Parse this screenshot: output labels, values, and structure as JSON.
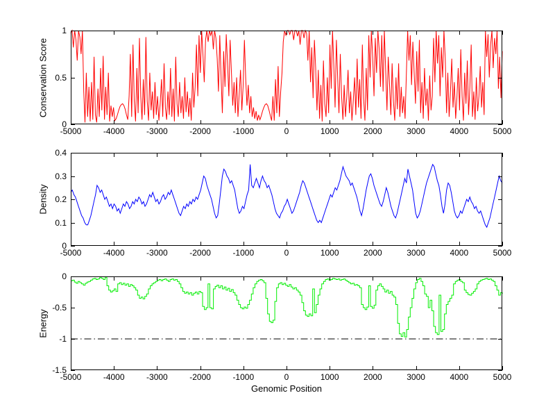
{
  "figure": {
    "background": "#ffffff"
  },
  "chart_data": [
    {
      "type": "line",
      "title": "",
      "ylabel": "Conservation Score",
      "xlabel": "",
      "xlim": [
        -5000,
        5000
      ],
      "ylim": [
        0,
        1
      ],
      "xticks": [
        -5000,
        -4000,
        -3000,
        -2000,
        -1000,
        0,
        1000,
        2000,
        3000,
        4000,
        5000
      ],
      "xtick_labels": [
        "-5000",
        "-4000",
        "-3000",
        "-2000",
        "-1000",
        "0",
        "1000",
        "2000",
        "3000",
        "4000",
        "5000"
      ],
      "yticks": [
        0,
        0.5,
        1
      ],
      "ytick_labels": [
        "0",
        "0.5",
        "1"
      ],
      "grid": false,
      "legend": null,
      "step": false,
      "refline": null,
      "series": [
        {
          "name": "conservation score",
          "color": "#ff0000",
          "x_start": -5000,
          "x_end": 5000,
          "values": [
            0.97,
            1,
            0.82,
            1,
            0.9,
            0.68,
            1,
            0.93,
            0.75,
            1,
            0.35,
            0.02,
            0.55,
            0.08,
            0.4,
            0.03,
            0.45,
            0.05,
            0.72,
            0.1,
            0.02,
            0.38,
            0.08,
            0.6,
            0.15,
            0.73,
            0.05,
            0.4,
            0.1,
            0.55,
            0.03,
            0.2,
            0.08,
            0.18,
            0.04,
            0.06,
            0.1,
            0.15,
            0.19,
            0.21,
            0.22,
            0.2,
            0.16,
            0.1,
            0.05,
            0.3,
            0.75,
            0.08,
            0.85,
            0.25,
            0.03,
            0.6,
            0.12,
            0.92,
            0.3,
            0.05,
            0.48,
            0.1,
            0.93,
            0.25,
            0.04,
            0.55,
            0.15,
            0.35,
            0.06,
            0.45,
            0.1,
            0.3,
            0.04,
            0.22,
            0.48,
            0.08,
            0.65,
            0.18,
            0.05,
            0.35,
            0.1,
            0.6,
            0.08,
            0.38,
            0.03,
            0.72,
            0.22,
            0.08,
            0.45,
            0.12,
            0.3,
            0.06,
            0.5,
            0.13,
            0.35,
            0.08,
            0.28,
            0.04,
            0.55,
            0.18,
            0.4,
            0.85,
            0.3,
            0.95,
            0.55,
            1,
            0.75,
            0.45,
            0.9,
            1,
            0.88,
            1,
            0.95,
            1,
            0.8,
            1,
            0.92,
            0.7,
            0.35,
            0.95,
            0.5,
            0.12,
            0.78,
            0.4,
            0.96,
            0.65,
            0.3,
            0.9,
            0.55,
            0.2,
            0.45,
            0.12,
            0.5,
            0.08,
            0.32,
            0.58,
            0.15,
            0.4,
            0.9,
            0.48,
            0.2,
            0.42,
            0.12,
            0.3,
            0.08,
            0.18,
            0.06,
            0.14,
            0.04,
            0.1,
            0.05,
            0.09,
            0.14,
            0.18,
            0.21,
            0.22,
            0.2,
            0.15,
            0.09,
            0.04,
            0.3,
            0.04,
            0.48,
            0.12,
            0.62,
            0.08,
            0.35,
            0.55,
            0.88,
            1,
            0.95,
            1,
            1,
            0.96,
            1,
            1,
            0.9,
            1,
            1,
            0.94,
            1,
            0.85,
            1,
            1,
            0.92,
            1,
            0.97,
            0.68,
            1,
            0.45,
            0.82,
            0.28,
            0.9,
            0.6,
            0.15,
            0.58,
            0.06,
            0.42,
            0.03,
            0.68,
            0.22,
            0.08,
            0.5,
            0.12,
            0.85,
            0.38,
            1,
            0.62,
            0.18,
            0.9,
            0.48,
            0.12,
            0.75,
            0.3,
            0.05,
            0.42,
            0.08,
            0.3,
            0.58,
            0.12,
            0.35,
            0.04,
            0.25,
            0.5,
            0.1,
            0.7,
            0.18,
            0.48,
            0.06,
            0.85,
            0.28,
            0.04,
            0.6,
            0.15,
            0.95,
            0.5,
            1,
            0.72,
            0.3,
            0.92,
            0.55,
            1,
            0.8,
            0.4,
            0.95,
            0.35,
            1,
            0.58,
            0.15,
            0.72,
            0.42,
            0.1,
            0.65,
            0.25,
            0.04,
            0.5,
            0.16,
            0.65,
            0.08,
            0.4,
            0.12,
            0.3,
            0.06,
            0.55,
            1,
            0.68,
            0.95,
            0.42,
            0.88,
            0.55,
            0.22,
            0.78,
            0.35,
            0.9,
            0.12,
            0.45,
            0.06,
            0.6,
            0.2,
            0.38,
            0.04,
            0.52,
            0.15,
            0.3,
            0.92,
            0.45,
            1,
            0.65,
            0.95,
            0.3,
            0.82,
            0.5,
            1,
            0.7,
            0.12,
            0.55,
            0.08,
            0.35,
            0.7,
            0.18,
            0.45,
            0.06,
            0.28,
            0.6,
            0.15,
            0.8,
            0.3,
            0.04,
            0.55,
            0.22,
            0.68,
            0.1,
            0.4,
            0.85,
            0.08,
            0.35,
            0.05,
            0.5,
            0.14,
            0.3,
            0.62,
            0.18,
            0.45,
            0.1,
            1,
            0.72,
            0.96,
            0.5,
            0.85,
            1,
            0.6,
            0.92,
            0.75,
            1,
            0.38,
            0.72,
            0.28,
            0.78
          ]
        }
      ]
    },
    {
      "type": "line",
      "title": "",
      "ylabel": "Density",
      "xlabel": "",
      "xlim": [
        -5000,
        5000
      ],
      "ylim": [
        0,
        0.4
      ],
      "xticks": [
        -5000,
        -4000,
        -3000,
        -2000,
        -1000,
        0,
        1000,
        2000,
        3000,
        4000,
        5000
      ],
      "xtick_labels": [
        "-5000",
        "-4000",
        "-3000",
        "-2000",
        "-1000",
        "0",
        "1000",
        "2000",
        "3000",
        "4000",
        "5000"
      ],
      "yticks": [
        0,
        0.1,
        0.2,
        0.3,
        0.4
      ],
      "ytick_labels": [
        "0",
        "0.1",
        "0.2",
        "0.3",
        "0.4"
      ],
      "grid": false,
      "legend": null,
      "step": false,
      "refline": null,
      "series": [
        {
          "name": "density",
          "color": "#0000ff",
          "x_start": -5000,
          "x_end": 5000,
          "values": [
            0.23,
            0.24,
            0.22,
            0.21,
            0.19,
            0.17,
            0.15,
            0.13,
            0.12,
            0.1,
            0.09,
            0.09,
            0.11,
            0.13,
            0.16,
            0.19,
            0.22,
            0.26,
            0.25,
            0.23,
            0.24,
            0.22,
            0.2,
            0.21,
            0.19,
            0.17,
            0.18,
            0.16,
            0.18,
            0.17,
            0.15,
            0.16,
            0.14,
            0.16,
            0.18,
            0.17,
            0.19,
            0.18,
            0.16,
            0.17,
            0.19,
            0.18,
            0.2,
            0.19,
            0.21,
            0.2,
            0.18,
            0.19,
            0.17,
            0.18,
            0.2,
            0.22,
            0.21,
            0.23,
            0.21,
            0.19,
            0.2,
            0.18,
            0.19,
            0.21,
            0.22,
            0.2,
            0.21,
            0.23,
            0.22,
            0.24,
            0.22,
            0.2,
            0.18,
            0.16,
            0.14,
            0.13,
            0.15,
            0.17,
            0.16,
            0.18,
            0.17,
            0.19,
            0.18,
            0.2,
            0.19,
            0.21,
            0.2,
            0.22,
            0.24,
            0.27,
            0.3,
            0.29,
            0.26,
            0.24,
            0.22,
            0.2,
            0.17,
            0.14,
            0.12,
            0.13,
            0.18,
            0.24,
            0.3,
            0.33,
            0.32,
            0.3,
            0.29,
            0.27,
            0.28,
            0.26,
            0.24,
            0.2,
            0.16,
            0.14,
            0.15,
            0.17,
            0.16,
            0.19,
            0.22,
            0.24,
            0.35,
            0.26,
            0.25,
            0.27,
            0.29,
            0.27,
            0.25,
            0.28,
            0.3,
            0.28,
            0.27,
            0.25,
            0.26,
            0.24,
            0.22,
            0.19,
            0.16,
            0.14,
            0.13,
            0.12,
            0.14,
            0.15,
            0.17,
            0.18,
            0.2,
            0.18,
            0.16,
            0.14,
            0.15,
            0.17,
            0.19,
            0.21,
            0.23,
            0.26,
            0.28,
            0.27,
            0.25,
            0.23,
            0.21,
            0.19,
            0.17,
            0.15,
            0.13,
            0.11,
            0.1,
            0.11,
            0.1,
            0.12,
            0.14,
            0.16,
            0.18,
            0.2,
            0.22,
            0.21,
            0.23,
            0.25,
            0.24,
            0.26,
            0.28,
            0.31,
            0.34,
            0.32,
            0.3,
            0.29,
            0.28,
            0.26,
            0.27,
            0.25,
            0.23,
            0.21,
            0.18,
            0.15,
            0.13,
            0.16,
            0.2,
            0.24,
            0.27,
            0.3,
            0.31,
            0.29,
            0.26,
            0.24,
            0.22,
            0.2,
            0.18,
            0.17,
            0.19,
            0.22,
            0.25,
            0.23,
            0.2,
            0.17,
            0.15,
            0.13,
            0.12,
            0.14,
            0.17,
            0.2,
            0.23,
            0.26,
            0.29,
            0.27,
            0.33,
            0.3,
            0.27,
            0.24,
            0.19,
            0.14,
            0.12,
            0.13,
            0.15,
            0.18,
            0.21,
            0.24,
            0.27,
            0.29,
            0.31,
            0.33,
            0.35,
            0.34,
            0.31,
            0.28,
            0.26,
            0.22,
            0.17,
            0.14,
            0.18,
            0.24,
            0.27,
            0.26,
            0.23,
            0.19,
            0.15,
            0.13,
            0.12,
            0.13,
            0.15,
            0.14,
            0.16,
            0.18,
            0.2,
            0.19,
            0.21,
            0.19,
            0.18,
            0.16,
            0.17,
            0.15,
            0.14,
            0.15,
            0.13,
            0.11,
            0.09,
            0.08,
            0.1,
            0.12,
            0.15,
            0.18,
            0.21,
            0.24,
            0.27,
            0.3,
            0.28,
            0.27
          ]
        }
      ]
    },
    {
      "type": "line",
      "title": "",
      "ylabel": "Energy",
      "xlabel": "Genomic Position",
      "xlim": [
        -5000,
        5000
      ],
      "ylim": [
        -1.5,
        0
      ],
      "xticks": [
        -5000,
        -4000,
        -3000,
        -2000,
        -1000,
        0,
        1000,
        2000,
        3000,
        4000,
        5000
      ],
      "xtick_labels": [
        "-5000",
        "-4000",
        "-3000",
        "-2000",
        "-1000",
        "0",
        "1000",
        "2000",
        "3000",
        "4000",
        "5000"
      ],
      "yticks": [
        -1.5,
        -1,
        -0.5,
        0
      ],
      "ytick_labels": [
        "-1.5",
        "-1",
        "-0.5",
        "0"
      ],
      "grid": false,
      "legend": null,
      "step": true,
      "refline": {
        "y": -1,
        "color": "#000000",
        "style": "dash-dot"
      },
      "series": [
        {
          "name": "energy",
          "color": "#00ee00",
          "x_start": -5000,
          "x_end": 5000,
          "values": [
            -0.07,
            -0.06,
            -0.09,
            -0.11,
            -0.08,
            -0.1,
            -0.12,
            -0.14,
            -0.11,
            -0.09,
            -0.08,
            -0.06,
            -0.04,
            -0.03,
            -0.05,
            -0.04,
            -0.02,
            -0.03,
            -0.05,
            -0.02,
            -0.15,
            -0.22,
            -0.25,
            -0.23,
            -0.2,
            -0.24,
            -0.12,
            -0.1,
            -0.13,
            -0.11,
            -0.14,
            -0.12,
            -0.16,
            -0.13,
            -0.15,
            -0.18,
            -0.22,
            -0.3,
            -0.35,
            -0.33,
            -0.36,
            -0.32,
            -0.28,
            -0.2,
            -0.15,
            -0.12,
            -0.1,
            -0.08,
            -0.06,
            -0.05,
            -0.07,
            -0.05,
            -0.04,
            -0.06,
            -0.08,
            -0.05,
            -0.04,
            -0.06,
            -0.05,
            -0.08,
            -0.12,
            -0.18,
            -0.24,
            -0.27,
            -0.25,
            -0.28,
            -0.26,
            -0.3,
            -0.27,
            -0.25,
            -0.28,
            -0.24,
            -0.26,
            -0.48,
            -0.53,
            -0.5,
            -0.12,
            -0.5,
            -0.52,
            -0.2,
            -0.16,
            -0.14,
            -0.18,
            -0.15,
            -0.2,
            -0.17,
            -0.22,
            -0.19,
            -0.24,
            -0.21,
            -0.26,
            -0.3,
            -0.38,
            -0.45,
            -0.5,
            -0.52,
            -0.49,
            -0.51,
            -0.45,
            -0.38,
            -0.28,
            -0.18,
            -0.12,
            -0.08,
            -0.06,
            -0.05,
            -0.07,
            -0.1,
            -0.35,
            -0.6,
            -0.72,
            -0.74,
            -0.7,
            -0.4,
            -0.18,
            -0.12,
            -0.1,
            -0.13,
            -0.11,
            -0.14,
            -0.16,
            -0.13,
            -0.17,
            -0.2,
            -0.18,
            -0.22,
            -0.25,
            -0.3,
            -0.42,
            -0.55,
            -0.62,
            -0.64,
            -0.6,
            -0.63,
            -0.2,
            -0.58,
            -0.45,
            -0.3,
            -0.2,
            -0.12,
            -0.08,
            -0.05,
            -0.04,
            -0.06,
            -0.05,
            -0.03,
            -0.04,
            -0.05,
            -0.04,
            -0.06,
            -0.05,
            -0.04,
            -0.06,
            -0.08,
            -0.1,
            -0.12,
            -0.11,
            -0.14,
            -0.13,
            -0.15,
            -0.18,
            -0.45,
            -0.5,
            -0.53,
            -0.49,
            -0.15,
            -0.48,
            -0.51,
            -0.46,
            -0.22,
            -0.15,
            -0.12,
            -0.16,
            -0.2,
            -0.25,
            -0.22,
            -0.27,
            -0.24,
            -0.3,
            -0.33,
            -0.45,
            -0.75,
            -0.92,
            -0.96,
            -0.9,
            -0.97,
            -0.85,
            -0.65,
            -0.5,
            -0.35,
            -0.2,
            -0.1,
            -0.05,
            -0.03,
            -0.08,
            -0.15,
            -0.28,
            -0.32,
            -0.5,
            -0.38,
            -0.55,
            -0.8,
            -0.9,
            -0.93,
            -0.3,
            -0.88,
            -0.85,
            -0.6,
            -0.45,
            -0.4,
            -0.35,
            -0.3,
            -0.12,
            -0.08,
            -0.06,
            -0.05,
            -0.08,
            -0.1,
            -0.22,
            -0.26,
            -0.29,
            -0.3,
            -0.27,
            -0.24,
            -0.2,
            -0.12,
            -0.08,
            -0.06,
            -0.05,
            -0.04,
            -0.03,
            -0.05,
            -0.04,
            -0.06,
            -0.08,
            -0.15,
            -0.22,
            -0.3,
            -0.26,
            -0.28
          ]
        }
      ]
    }
  ]
}
